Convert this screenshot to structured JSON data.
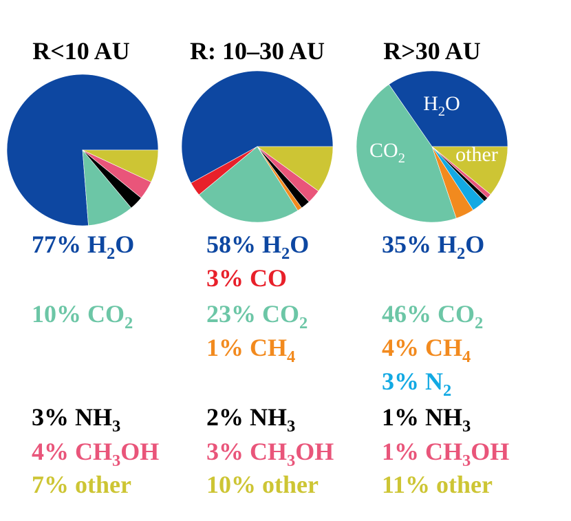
{
  "colors": {
    "H2O": "#0d47a1",
    "CO": "#e8202a",
    "CO2": "#6cc6a6",
    "CH4": "#f28a1e",
    "N2": "#12a9e3",
    "NH3": "#000000",
    "CH3OH": "#e9557a",
    "other": "#cdc534"
  },
  "chart_data": [
    {
      "type": "pie",
      "title": "R<10 AU",
      "slices": [
        {
          "key": "H2O",
          "value": 77
        },
        {
          "key": "CO2",
          "value": 10
        },
        {
          "key": "NH3",
          "value": 3
        },
        {
          "key": "CH3OH",
          "value": 4
        },
        {
          "key": "other",
          "value": 7
        }
      ],
      "slice_labels": [],
      "legend": [
        {
          "key": "H2O",
          "pct": "77%",
          "label": "H",
          "sub": "2",
          "tail": "O"
        },
        {
          "key": "CO2",
          "pct": "10%",
          "label": "CO",
          "sub": "2",
          "tail": ""
        },
        {
          "key": "NH3",
          "pct": "3%",
          "label": "NH",
          "sub": "3",
          "tail": ""
        },
        {
          "key": "CH3OH",
          "pct": "4%",
          "label": "CH",
          "sub": "3",
          "tail": "OH"
        },
        {
          "key": "other",
          "pct": "7%",
          "label": "other",
          "sub": "",
          "tail": ""
        }
      ]
    },
    {
      "type": "pie",
      "title": "R: 10–30 AU",
      "slices": [
        {
          "key": "H2O",
          "value": 58
        },
        {
          "key": "CO",
          "value": 3
        },
        {
          "key": "CO2",
          "value": 23
        },
        {
          "key": "CH4",
          "value": 1
        },
        {
          "key": "NH3",
          "value": 2
        },
        {
          "key": "CH3OH",
          "value": 3
        },
        {
          "key": "other",
          "value": 10
        }
      ],
      "slice_labels": [],
      "legend": [
        {
          "key": "H2O",
          "pct": "58%",
          "label": "H",
          "sub": "2",
          "tail": "O"
        },
        {
          "key": "CO",
          "pct": "3%",
          "label": "CO",
          "sub": "",
          "tail": ""
        },
        {
          "key": "CO2",
          "pct": "23%",
          "label": "CO",
          "sub": "2",
          "tail": ""
        },
        {
          "key": "CH4",
          "pct": "1%",
          "label": "CH",
          "sub": "4",
          "tail": ""
        },
        {
          "key": "NH3",
          "pct": "2%",
          "label": "NH",
          "sub": "3",
          "tail": ""
        },
        {
          "key": "CH3OH",
          "pct": "3%",
          "label": "CH",
          "sub": "3",
          "tail": "OH"
        },
        {
          "key": "other",
          "pct": "10%",
          "label": "other",
          "sub": "",
          "tail": ""
        }
      ]
    },
    {
      "type": "pie",
      "title": "R>30 AU",
      "slices": [
        {
          "key": "H2O",
          "value": 35
        },
        {
          "key": "CO2",
          "value": 46
        },
        {
          "key": "CH4",
          "value": 4
        },
        {
          "key": "N2",
          "value": 3
        },
        {
          "key": "NH3",
          "value": 1
        },
        {
          "key": "CH3OH",
          "value": 1
        },
        {
          "key": "other",
          "value": 11
        }
      ],
      "slice_labels": [
        {
          "key": "H2O",
          "label": "H",
          "sub": "2",
          "tail": "O"
        },
        {
          "key": "CO2",
          "label": "CO",
          "sub": "2",
          "tail": ""
        },
        {
          "key": "other",
          "label": "other",
          "sub": "",
          "tail": ""
        }
      ],
      "legend": [
        {
          "key": "H2O",
          "pct": "35%",
          "label": "H",
          "sub": "2",
          "tail": "O"
        },
        {
          "key": "CO2",
          "pct": "46%",
          "label": "CO",
          "sub": "2",
          "tail": ""
        },
        {
          "key": "CH4",
          "pct": "4%",
          "label": "CH",
          "sub": "4",
          "tail": ""
        },
        {
          "key": "N2",
          "pct": "3%",
          "label": "N",
          "sub": "2",
          "tail": ""
        },
        {
          "key": "NH3",
          "pct": "1%",
          "label": "NH",
          "sub": "3",
          "tail": ""
        },
        {
          "key": "CH3OH",
          "pct": "1%",
          "label": "CH",
          "sub": "3",
          "tail": "OH"
        },
        {
          "key": "other",
          "pct": "11%",
          "label": "other",
          "sub": "",
          "tail": ""
        }
      ]
    }
  ]
}
